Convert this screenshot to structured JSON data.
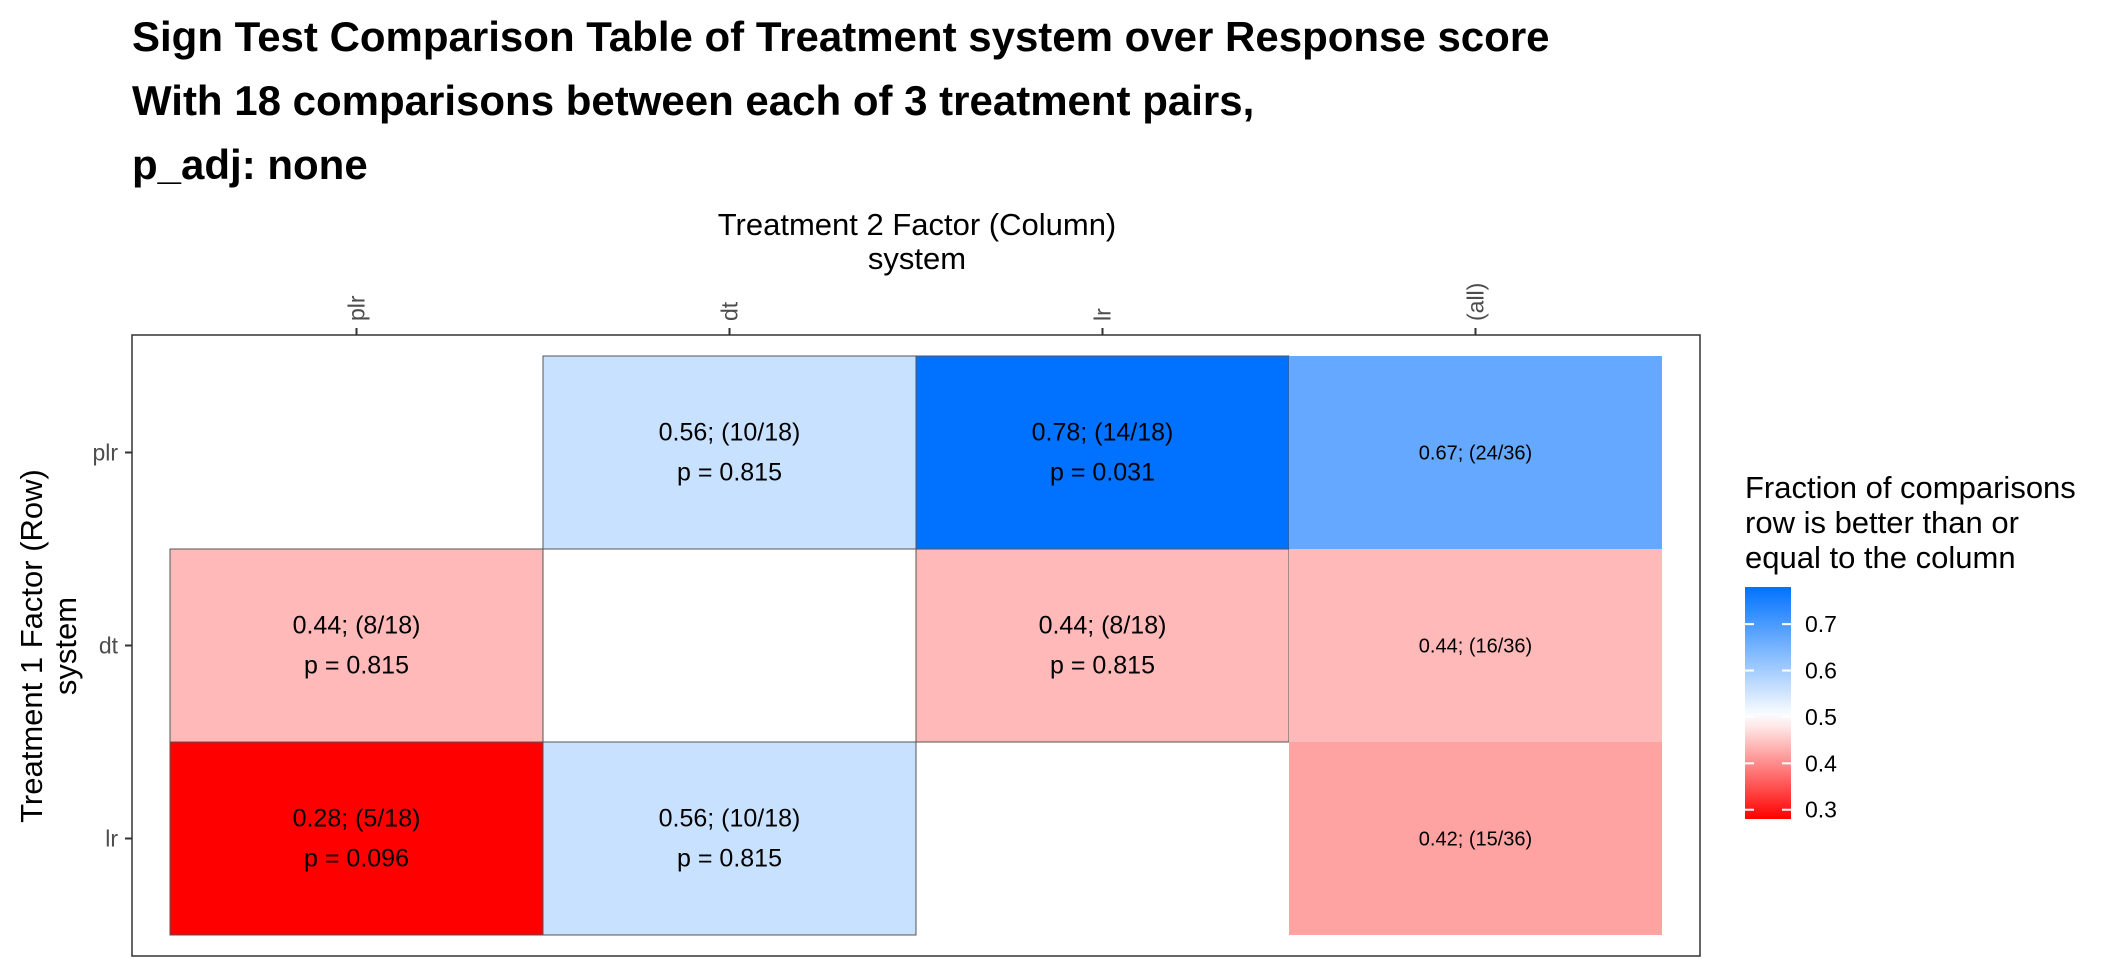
{
  "title_lines": [
    "Sign Test Comparison Table of Treatment system over Response score",
    "With 18 comparisons between each of 3 treatment pairs,",
    "p_adj: none"
  ],
  "chart_data": {
    "type": "heatmap",
    "column_axis_title": [
      "Treatment 2 Factor (Column)",
      "system"
    ],
    "row_axis_title": [
      "Treatment 1 Factor (Row)",
      "system"
    ],
    "columns": [
      "plr",
      "dt",
      "lr",
      "(all)"
    ],
    "rows": [
      "plr",
      "dt",
      "lr"
    ],
    "cells": [
      {
        "row": "plr",
        "col": "dt",
        "value": 0.56,
        "label": "0.56; (10/18)",
        "p_label": "p = 0.815",
        "border": true
      },
      {
        "row": "plr",
        "col": "lr",
        "value": 0.78,
        "label": "0.78; (14/18)",
        "p_label": "p = 0.031",
        "border": true
      },
      {
        "row": "plr",
        "col": "(all)",
        "value": 0.67,
        "label": "0.67; (24/36)",
        "p_label": "",
        "border": false
      },
      {
        "row": "dt",
        "col": "plr",
        "value": 0.44,
        "label": "0.44; (8/18)",
        "p_label": "p = 0.815",
        "border": true
      },
      {
        "row": "dt",
        "col": "lr",
        "value": 0.44,
        "label": "0.44; (8/18)",
        "p_label": "p = 0.815",
        "border": true
      },
      {
        "row": "dt",
        "col": "(all)",
        "value": 0.44,
        "label": "0.44; (16/36)",
        "p_label": "",
        "border": false
      },
      {
        "row": "lr",
        "col": "plr",
        "value": 0.28,
        "label": "0.28; (5/18)",
        "p_label": "p = 0.096",
        "border": true
      },
      {
        "row": "lr",
        "col": "dt",
        "value": 0.56,
        "label": "0.56; (10/18)",
        "p_label": "p = 0.815",
        "border": true
      },
      {
        "row": "lr",
        "col": "(all)",
        "value": 0.42,
        "label": "0.42; (15/36)",
        "p_label": "",
        "border": false
      }
    ],
    "colorscale": {
      "low": "#ff0000",
      "mid": "#ffffff",
      "high": "#0072ff",
      "min": 0.28,
      "midpoint": 0.5,
      "max": 0.78
    },
    "legend": {
      "title_lines": [
        "Fraction of comparisons",
        "row is better than or",
        "equal to the column"
      ],
      "breaks": [
        0.7,
        0.6,
        0.5,
        0.4,
        0.3
      ],
      "break_labels": [
        "0.7",
        "0.6",
        "0.5",
        "0.4",
        "0.3"
      ],
      "placement": "right"
    }
  }
}
